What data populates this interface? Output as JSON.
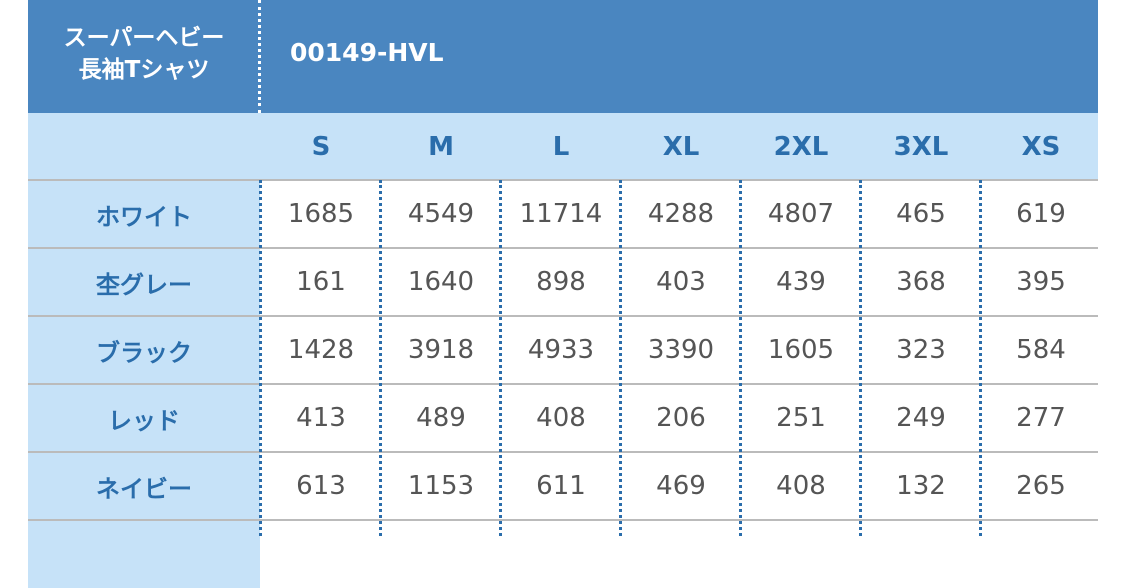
{
  "header": {
    "title_lines": [
      "スーパーヘビー",
      "長袖Tシャツ"
    ],
    "code": "00149-HVL"
  },
  "table": {
    "sizes": [
      "S",
      "M",
      "L",
      "XL",
      "2XL",
      "3XL",
      "XS"
    ],
    "rows": [
      {
        "name": "ホワイト",
        "values": [
          1685,
          4549,
          11714,
          4288,
          4807,
          465,
          619
        ]
      },
      {
        "name": "杢グレー",
        "values": [
          161,
          1640,
          898,
          403,
          439,
          368,
          395
        ]
      },
      {
        "name": "ブラック",
        "values": [
          1428,
          3918,
          4933,
          3390,
          1605,
          323,
          584
        ]
      },
      {
        "name": "レッド",
        "values": [
          413,
          489,
          408,
          206,
          251,
          249,
          277
        ]
      },
      {
        "name": "ネイビー",
        "values": [
          613,
          1153,
          611,
          469,
          408,
          132,
          265
        ]
      }
    ]
  }
}
